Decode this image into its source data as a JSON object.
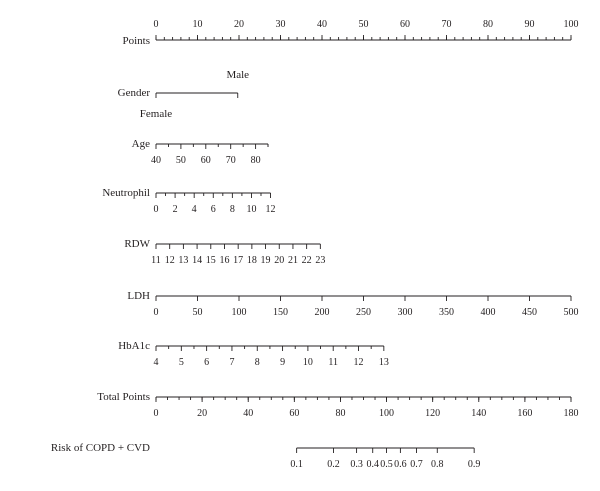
{
  "chart_data": {
    "type": "nomogram",
    "title": "",
    "line_color": "#231f20",
    "rows": [
      {
        "name": "Points",
        "points_range": [
          0,
          100
        ],
        "labeled_ticks": [
          {
            "value": 0,
            "label": "0",
            "pts": 0
          },
          {
            "value": 10,
            "label": "10",
            "pts": 10
          },
          {
            "value": 20,
            "label": "20",
            "pts": 20
          },
          {
            "value": 30,
            "label": "30",
            "pts": 30
          },
          {
            "value": 40,
            "label": "40",
            "pts": 40
          },
          {
            "value": 50,
            "label": "50",
            "pts": 50
          },
          {
            "value": 60,
            "label": "60",
            "pts": 60
          },
          {
            "value": 70,
            "label": "70",
            "pts": 70
          },
          {
            "value": 80,
            "label": "80",
            "pts": 80
          },
          {
            "value": 90,
            "label": "90",
            "pts": 90
          },
          {
            "value": 100,
            "label": "100",
            "pts": 100
          }
        ],
        "minor_tick_pts_step": 2,
        "labels_above": true
      },
      {
        "name": "Gender",
        "categories": [
          {
            "label": "Female",
            "pts": 0,
            "label_pos": "below"
          },
          {
            "label": "Male",
            "pts": 19.7,
            "label_pos": "above"
          }
        ]
      },
      {
        "name": "Age",
        "labeled_ticks": [
          {
            "value": 40,
            "label": "40",
            "pts": 0
          },
          {
            "value": 50,
            "label": "50",
            "pts": 6
          },
          {
            "value": 60,
            "label": "60",
            "pts": 12
          },
          {
            "value": 70,
            "label": "70",
            "pts": 18
          },
          {
            "value": 80,
            "label": "80",
            "pts": 24
          }
        ],
        "minor_tick_pts": [
          3,
          9,
          15,
          21,
          27
        ],
        "end_pts": 27
      },
      {
        "name": "Neutrophil",
        "labeled_ticks": [
          {
            "value": 0,
            "label": "0",
            "pts": 0
          },
          {
            "value": 2,
            "label": "2",
            "pts": 4.6
          },
          {
            "value": 4,
            "label": "4",
            "pts": 9.2
          },
          {
            "value": 6,
            "label": "6",
            "pts": 13.8
          },
          {
            "value": 8,
            "label": "8",
            "pts": 18.4
          },
          {
            "value": 10,
            "label": "10",
            "pts": 23
          },
          {
            "value": 12,
            "label": "12",
            "pts": 27.6
          }
        ],
        "minor_tick_pts": [
          2.3,
          6.9,
          11.5,
          16.1,
          20.7,
          25.3
        ]
      },
      {
        "name": "RDW",
        "labeled_ticks": [
          {
            "value": 11,
            "label": "11",
            "pts": 0
          },
          {
            "value": 12,
            "label": "12",
            "pts": 3.3
          },
          {
            "value": 13,
            "label": "13",
            "pts": 6.6
          },
          {
            "value": 14,
            "label": "14",
            "pts": 9.9
          },
          {
            "value": 15,
            "label": "15",
            "pts": 13.2
          },
          {
            "value": 16,
            "label": "16",
            "pts": 16.5
          },
          {
            "value": 17,
            "label": "17",
            "pts": 19.8
          },
          {
            "value": 18,
            "label": "18",
            "pts": 23.1
          },
          {
            "value": 19,
            "label": "19",
            "pts": 26.4
          },
          {
            "value": 20,
            "label": "20",
            "pts": 29.7
          },
          {
            "value": 21,
            "label": "21",
            "pts": 33
          },
          {
            "value": 22,
            "label": "22",
            "pts": 36.3
          },
          {
            "value": 23,
            "label": "23",
            "pts": 39.6
          }
        ]
      },
      {
        "name": "LDH",
        "labeled_ticks": [
          {
            "value": 0,
            "label": "0",
            "pts": 0
          },
          {
            "value": 50,
            "label": "50",
            "pts": 10
          },
          {
            "value": 100,
            "label": "100",
            "pts": 20
          },
          {
            "value": 150,
            "label": "150",
            "pts": 30
          },
          {
            "value": 200,
            "label": "200",
            "pts": 40
          },
          {
            "value": 250,
            "label": "250",
            "pts": 50
          },
          {
            "value": 300,
            "label": "300",
            "pts": 60
          },
          {
            "value": 350,
            "label": "350",
            "pts": 70
          },
          {
            "value": 400,
            "label": "400",
            "pts": 80
          },
          {
            "value": 450,
            "label": "450",
            "pts": 90
          },
          {
            "value": 500,
            "label": "500",
            "pts": 100
          }
        ]
      },
      {
        "name": "HbA1c",
        "labeled_ticks": [
          {
            "value": 4,
            "label": "4",
            "pts": 0
          },
          {
            "value": 5,
            "label": "5",
            "pts": 6.1
          },
          {
            "value": 6,
            "label": "6",
            "pts": 12.2
          },
          {
            "value": 7,
            "label": "7",
            "pts": 18.3
          },
          {
            "value": 8,
            "label": "8",
            "pts": 24.4
          },
          {
            "value": 9,
            "label": "9",
            "pts": 30.5
          },
          {
            "value": 10,
            "label": "10",
            "pts": 36.6
          },
          {
            "value": 11,
            "label": "11",
            "pts": 42.7
          },
          {
            "value": 12,
            "label": "12",
            "pts": 48.8
          },
          {
            "value": 13,
            "label": "13",
            "pts": 54.9
          }
        ],
        "minor_tick_pts": [
          3.05,
          9.15,
          15.25,
          21.35,
          27.45,
          33.55,
          39.65,
          45.75,
          51.85
        ]
      },
      {
        "name": "Total Points",
        "total_scale": true,
        "total_range": [
          0,
          180
        ],
        "labeled_ticks": [
          {
            "value": 0,
            "label": "0"
          },
          {
            "value": 20,
            "label": "20"
          },
          {
            "value": 40,
            "label": "40"
          },
          {
            "value": 60,
            "label": "60"
          },
          {
            "value": 80,
            "label": "80"
          },
          {
            "value": 100,
            "label": "100"
          },
          {
            "value": 120,
            "label": "120"
          },
          {
            "value": 140,
            "label": "140"
          },
          {
            "value": 160,
            "label": "160"
          },
          {
            "value": 180,
            "label": "180"
          }
        ],
        "minor_tick_step": 5
      },
      {
        "name": "Risk of COPD + CVD",
        "total_scale": true,
        "labeled_ticks": [
          {
            "value": 0.1,
            "label": "0.1",
            "total": 61
          },
          {
            "value": 0.2,
            "label": "0.2",
            "total": 77
          },
          {
            "value": 0.3,
            "label": "0.3",
            "total": 87
          },
          {
            "value": 0.4,
            "label": "0.4",
            "total": 94
          },
          {
            "value": 0.5,
            "label": "0.5",
            "total": 100
          },
          {
            "value": 0.6,
            "label": "0.6",
            "total": 106
          },
          {
            "value": 0.7,
            "label": "0.7",
            "total": 113
          },
          {
            "value": 0.8,
            "label": "0.8",
            "total": 122
          },
          {
            "value": 0.9,
            "label": "0.9",
            "total": 138
          }
        ]
      }
    ]
  }
}
